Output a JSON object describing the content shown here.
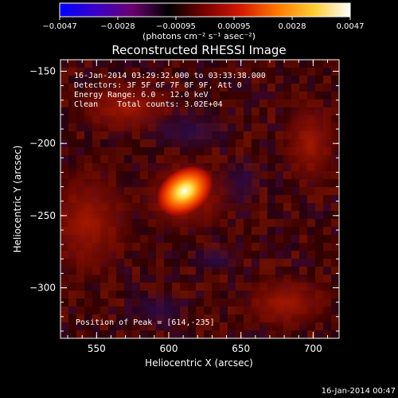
{
  "colorbar": {
    "tick_labels": [
      "−0.0047",
      "−0.0028",
      "−0.00095",
      "0.00095",
      "0.0028",
      "0.0047"
    ],
    "units_label": "(photons cm⁻² s⁻¹ asec⁻²)",
    "colors": [
      "#0000ff",
      "#3a00c8",
      "#6a0070",
      "#000000",
      "#7a0000",
      "#d61a00",
      "#ff7a00",
      "#ffcc33",
      "#ffffff"
    ]
  },
  "image": {
    "title": "Reconstructed RHESSI Image",
    "info_lines": [
      "16-Jan-2014 03:29:32.000 to 03:33:38.000",
      "Detectors: 3F 5F 6F 7F 8F 9F, Att 0",
      "Energy Range: 6.0 - 12.0 keV",
      "Clean    Total counts: 3.02E+04"
    ],
    "peak_label": "Position of Peak = [614,-235]",
    "peak_position": [
      614,
      -235
    ],
    "xlabel": "Heliocentric X (arcsec)",
    "ylabel": "Heliocentric Y (arcsec)",
    "x_ticks": [
      "550",
      "600",
      "650",
      "700"
    ],
    "y_ticks": [
      "−150",
      "−200",
      "−250",
      "−300"
    ],
    "xlim": [
      525,
      718
    ],
    "ylim": [
      -335,
      -142
    ]
  },
  "footer": {
    "timestamp": "16-Jan-2014 00:47"
  }
}
